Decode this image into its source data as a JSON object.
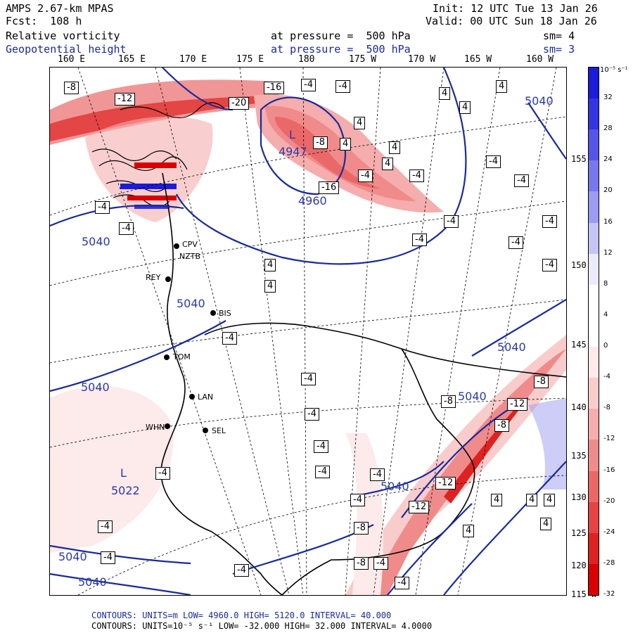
{
  "header": {
    "model": "AMPS 2.67-km MPAS",
    "forecast": "Fcst:  108 h",
    "field1": "Relative vorticity",
    "field2": "Geopotential height",
    "init": "Init: 12 UTC Tue 13 Jan 26",
    "valid": "Valid: 00 UTC Sun 18 Jan 26",
    "pressure1": "at pressure =  500 hPa",
    "pressure2": "at pressure =  500 hPa",
    "sm1": "sm= 4",
    "sm2": "sm= 3"
  },
  "lon_labels": [
    "160 E",
    "165 E",
    "170 E",
    "175 E",
    "180",
    "175 W",
    "170 W",
    "165 W",
    "160 W"
  ],
  "lat_labels": [
    "155 W",
    "150 W",
    "145 W",
    "140 W",
    "135 W",
    "130 W",
    "125 W",
    "120 W",
    "115 W"
  ],
  "colorbar": {
    "units": "10⁻⁵ s⁻¹",
    "labels": [
      "32",
      "28",
      "24",
      "20",
      "16",
      "12",
      "8",
      "4",
      "0",
      "-4",
      "-8",
      "-12",
      "-16",
      "-20",
      "-24",
      "-28",
      "-32"
    ],
    "colors": [
      "#1b1bd9",
      "#3434e0",
      "#5656e6",
      "#7878ec",
      "#9c9cf2",
      "#c4c4f7",
      "#ebebfc",
      "#ffffff",
      "#ffffff",
      "#fdeaea",
      "#f9cccc",
      "#f5adad",
      "#f08b8b",
      "#ea6868",
      "#e44444",
      "#de2222",
      "#d80000"
    ]
  },
  "stations": [
    "CPV",
    "NZTB",
    "REY",
    "BIS",
    "TOM",
    "LAN",
    "WHN",
    "SEL"
  ],
  "height_labels": [
    "5040",
    "5040",
    "5040",
    "5040",
    "5040",
    "5040",
    "5040",
    "5040",
    "5040",
    "4947",
    "4960",
    "5022"
  ],
  "centers": [
    "L",
    "L"
  ],
  "vort_labels": [
    "-8",
    "-12",
    "-16",
    "-20",
    "-16",
    "-8",
    "-4",
    "-4",
    "-4",
    "4",
    "4",
    "4",
    "4",
    "4",
    "-4",
    "-4",
    "-4",
    "-4",
    "4",
    "4",
    "4",
    "4",
    "-4",
    "-4",
    "-4",
    "-4",
    "-4",
    "-4",
    "-8",
    "-12",
    "-8",
    "-8",
    "-12",
    "-12",
    "-8",
    "-8",
    "-4",
    "-4",
    "-4",
    "-4",
    "-4",
    "-4",
    "4",
    "4",
    "4",
    "4",
    "4",
    "-4",
    "-4",
    "-4",
    "-4",
    "-4",
    "-4",
    "-4"
  ],
  "footer": {
    "line1": "CONTOURS:  UNITS=m  LOW=  4960.0       HIGH=  5120.0       INTERVAL=   40.000",
    "line2": "CONTOURS:  UNITS=10⁻⁵ s⁻¹  LOW= -32.000        HIGH=  32.000       INTERVAL=   4.0000"
  }
}
